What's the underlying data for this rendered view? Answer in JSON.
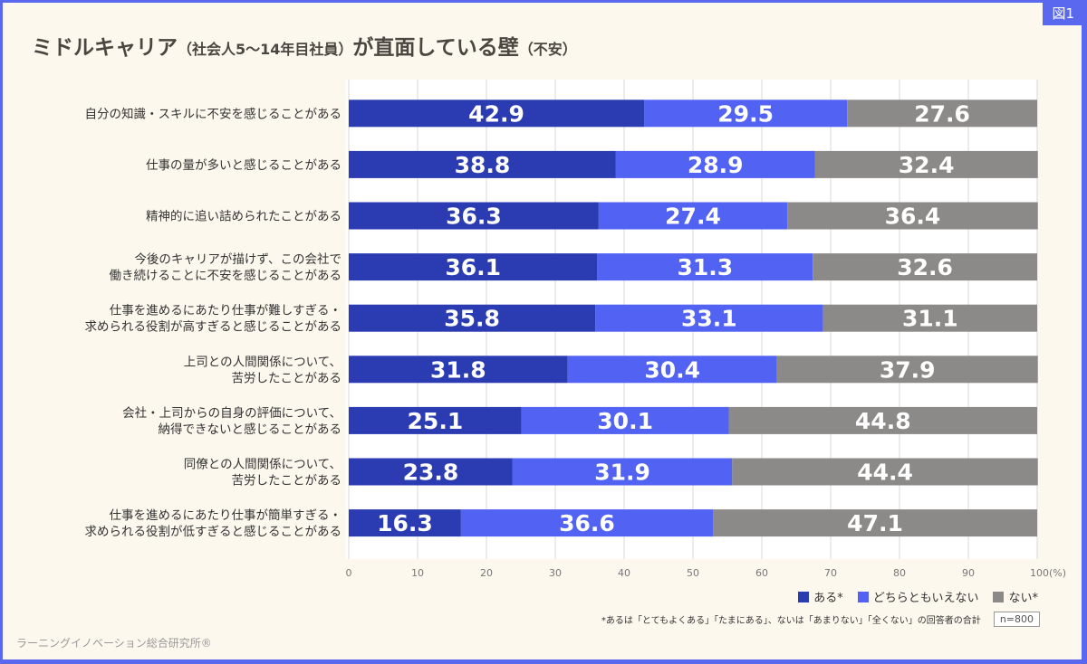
{
  "figure_tag": "図1",
  "title_main_1": "ミドルキャリア",
  "title_paren_1": "（社会人5～14年目社員）",
  "title_main_2": "が直面している壁",
  "title_paren_2": "（不安）",
  "footer": "ラーニングイノベーション総合研究所®",
  "note": "*あるは「とてもよくある」「たまにある」、ないは「あまりない」「全くない」の回答者の合計",
  "sample": "n=800",
  "chart_data": {
    "type": "bar",
    "orientation": "horizontal",
    "stacked": true,
    "categories": [
      [
        "自分の知識・スキルに不安を感じることがある"
      ],
      [
        "仕事の量が多いと感じることがある"
      ],
      [
        "精神的に追い詰められたことがある"
      ],
      [
        "今後のキャリアが描けず、この会社で",
        "働き続けることに不安を感じることがある"
      ],
      [
        "仕事を進めるにあたり仕事が難しすぎる・",
        "求められる役割が高すぎると感じることがある"
      ],
      [
        "上司との人間関係について、",
        "苦労したことがある"
      ],
      [
        "会社・上司からの自身の評価について、",
        "納得できないと感じることがある"
      ],
      [
        "同僚との人間関係について、",
        "苦労したことがある"
      ],
      [
        "仕事を進めるにあたり仕事が簡単すぎる・",
        "求められる役割が低すぎると感じることがある"
      ]
    ],
    "series": [
      {
        "name": "ある*",
        "color": "#2b3bb2",
        "values": [
          42.9,
          38.8,
          36.3,
          36.1,
          35.8,
          31.8,
          25.1,
          23.8,
          16.3
        ]
      },
      {
        "name": "どちらともいえない",
        "color": "#5262f2",
        "values": [
          29.5,
          28.9,
          27.4,
          31.3,
          33.1,
          30.4,
          30.1,
          31.9,
          36.6
        ]
      },
      {
        "name": "ない*",
        "color": "#8c8a88",
        "values": [
          27.6,
          32.4,
          36.4,
          32.6,
          31.1,
          37.9,
          44.8,
          44.4,
          47.1
        ]
      }
    ],
    "xlim": [
      0,
      100
    ],
    "xticks": [
      "0",
      "10",
      "20",
      "30",
      "40",
      "50",
      "60",
      "70",
      "80",
      "90",
      "100(%)"
    ],
    "grid": true,
    "legend": "bottom-right"
  }
}
